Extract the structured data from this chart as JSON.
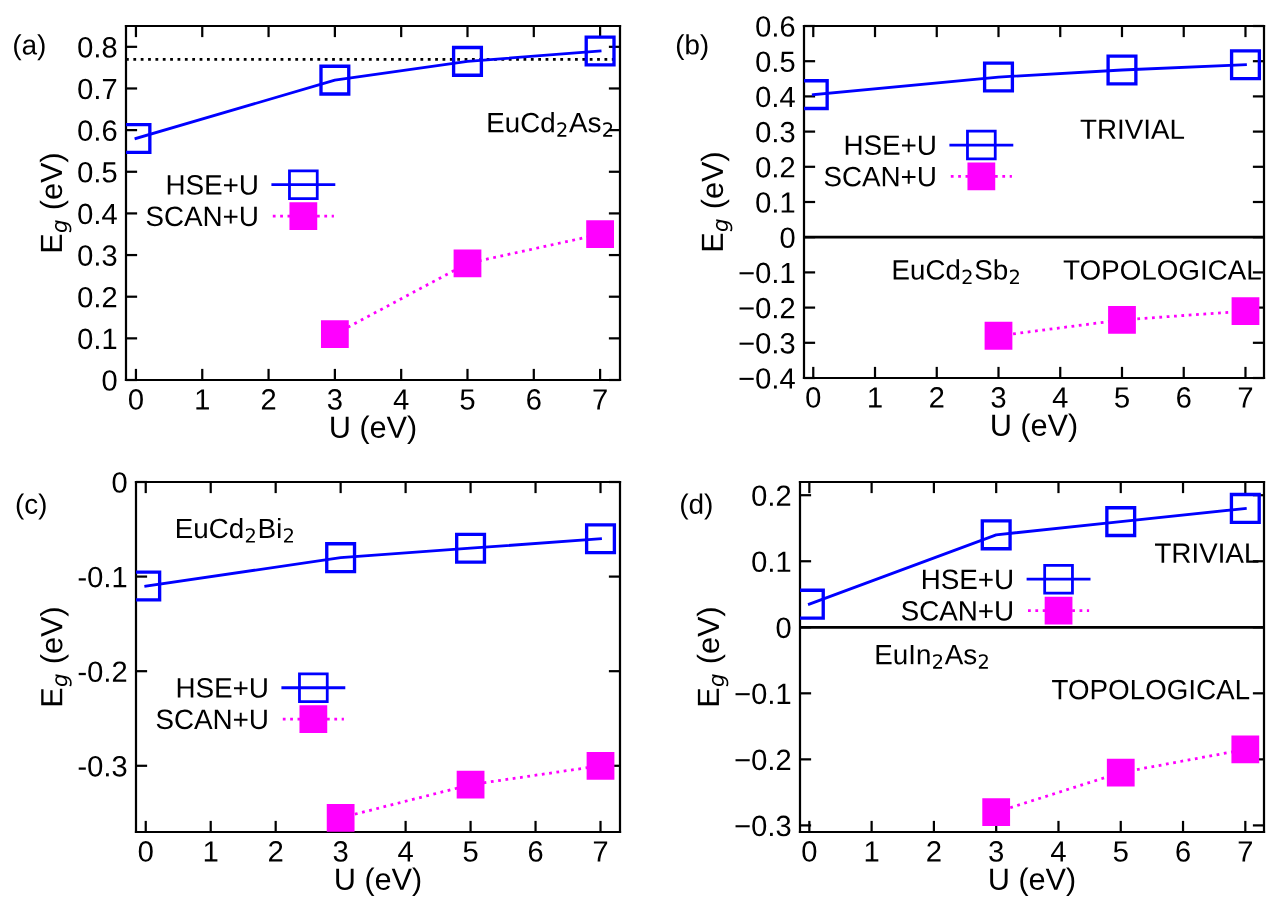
{
  "chart_data": [
    {
      "type": "line",
      "xlabel": "U (eV)",
      "ylabel": "E$_{g}$ (eV)",
      "x": [
        0,
        3,
        5,
        7
      ],
      "xlim": [
        -0.15,
        7.3
      ],
      "xticks": [
        0,
        1,
        2,
        3,
        4,
        5,
        6,
        7
      ],
      "ylim": [
        0,
        0.85
      ],
      "yticks": [
        0,
        0.1,
        0.2,
        0.3,
        0.4,
        0.5,
        0.6,
        0.7,
        0.8
      ],
      "grid": false,
      "legend": "left",
      "series": [
        {
          "name": "HSE+U",
          "color": "#0000ff",
          "marker": "square",
          "line_style": "solid",
          "values": [
            0.58,
            0.72,
            0.765,
            0.79
          ]
        },
        {
          "name": "SCAN+U",
          "color": "#ff00ff",
          "marker": "square",
          "line_style": "dotted",
          "values": [
            null,
            0.11,
            0.28,
            0.35
          ]
        }
      ],
      "ref_lines": [
        {
          "axis": "y",
          "value": 0.77,
          "color": "#000000",
          "line_style": "dotted"
        }
      ],
      "annotations": [
        "(a)",
        "EuCd$_{2}$As$_{2}$"
      ]
    },
    {
      "type": "line",
      "xlabel": "U (eV)",
      "ylabel": "E$_{g}$ (eV)",
      "x": [
        0,
        3,
        5,
        7
      ],
      "xlim": [
        -0.15,
        7.3
      ],
      "xticks": [
        0,
        1,
        2,
        3,
        4,
        5,
        6,
        7
      ],
      "ylim": [
        -0.4,
        0.6
      ],
      "yticks": [
        -0.4,
        -0.3,
        -0.2,
        -0.1,
        0,
        0.1,
        0.2,
        0.3,
        0.4,
        0.5,
        0.6
      ],
      "grid": false,
      "legend": "left",
      "series": [
        {
          "name": "HSE+U",
          "color": "#0000ff",
          "marker": "square",
          "line_style": "solid",
          "values": [
            0.405,
            0.455,
            0.475,
            0.49
          ]
        },
        {
          "name": "SCAN+U",
          "color": "#ff00ff",
          "marker": "square",
          "line_style": "dotted",
          "values": [
            null,
            -0.28,
            -0.235,
            -0.21
          ]
        }
      ],
      "ref_lines": [
        {
          "axis": "y",
          "value": 0,
          "color": "#000000",
          "line_style": "solid"
        }
      ],
      "annotations": [
        "(b)",
        "TRIVIAL",
        "EuCd$_{2}$Sb$_{2}$",
        "TOPOLOGICAL"
      ]
    },
    {
      "type": "line",
      "xlabel": "U (eV)",
      "ylabel": "E$_{g}$ (eV)",
      "x": [
        0,
        3,
        5,
        7
      ],
      "xlim": [
        -0.15,
        7.3
      ],
      "xticks": [
        0,
        1,
        2,
        3,
        4,
        5,
        6,
        7
      ],
      "ylim": [
        -0.37,
        0
      ],
      "yticks": [
        {
          "value": -0.3,
          "label": "-0.3"
        },
        {
          "value": -0.2,
          "label": "-0.2"
        },
        {
          "value": -0.1,
          "label": "-0.1"
        },
        0
      ],
      "grid": false,
      "legend": "bottom left",
      "series": [
        {
          "name": "HSE+U",
          "color": "#0000ff",
          "marker": "square",
          "line_style": "solid",
          "values": [
            -0.11,
            -0.08,
            -0.07,
            -0.06
          ]
        },
        {
          "name": "SCAN+U",
          "color": "#ff00ff",
          "marker": "square",
          "line_style": "dotted",
          "values": [
            null,
            -0.355,
            -0.32,
            -0.3
          ]
        }
      ],
      "annotations": [
        "(c)",
        "EuCd$_{2}$Bi$_{2}$"
      ]
    },
    {
      "type": "line",
      "xlabel": "U (eV)",
      "ylabel": "E$_{g}$ (eV)",
      "x": [
        0,
        3,
        5,
        7
      ],
      "xlim": [
        -0.15,
        7.3
      ],
      "xticks": [
        0,
        1,
        2,
        3,
        4,
        5,
        6,
        7
      ],
      "ylim": [
        -0.31,
        0.22
      ],
      "yticks": [
        -0.3,
        -0.2,
        -0.1,
        0,
        0.1,
        0.2
      ],
      "grid": false,
      "legend": "top",
      "series": [
        {
          "name": "HSE+U",
          "color": "#0000ff",
          "marker": "square",
          "line_style": "solid",
          "values": [
            0.035,
            0.14,
            0.16,
            0.18
          ]
        },
        {
          "name": "SCAN+U",
          "color": "#ff00ff",
          "marker": "square",
          "line_style": "dotted",
          "values": [
            null,
            -0.28,
            -0.22,
            -0.185
          ]
        }
      ],
      "ref_lines": [
        {
          "axis": "y",
          "value": 0,
          "color": "#000000",
          "line_style": "solid"
        }
      ],
      "annotations": [
        "(d)",
        "TRIVIAL",
        "EuIn$_{2}$As$_{2}$",
        "TOPOLOGICAL"
      ]
    }
  ]
}
